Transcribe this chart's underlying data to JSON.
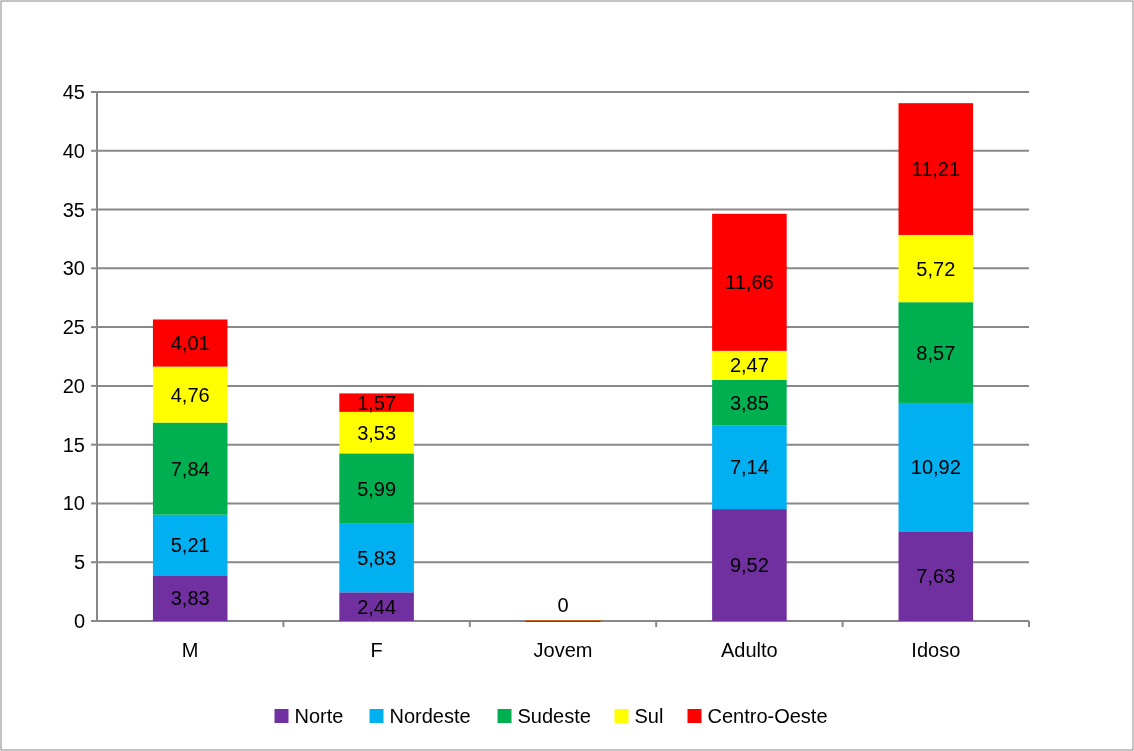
{
  "chart_data": {
    "type": "bar",
    "stacked": true,
    "categories": [
      "M",
      "F",
      "Jovem",
      "Adulto",
      "Idoso"
    ],
    "series": [
      {
        "name": "Norte",
        "color": "#7030a0",
        "values": [
          3.83,
          2.44,
          0,
          9.52,
          7.63
        ],
        "value_labels": [
          "3,83",
          "2,44",
          null,
          "9,52",
          "7,63"
        ]
      },
      {
        "name": "Nordeste",
        "color": "#00b0f0",
        "values": [
          5.21,
          5.83,
          0,
          7.14,
          10.92
        ],
        "value_labels": [
          "5,21",
          "5,83",
          null,
          "7,14",
          "10,92"
        ]
      },
      {
        "name": "Sudeste",
        "color": "#00b050",
        "values": [
          7.84,
          5.99,
          0,
          3.85,
          8.57
        ],
        "value_labels": [
          "7,84",
          "5,99",
          null,
          "3,85",
          "8,57"
        ]
      },
      {
        "name": "Sul",
        "color": "#ffff00",
        "values": [
          4.76,
          3.53,
          0,
          2.47,
          5.72
        ],
        "value_labels": [
          "4,76",
          "3,53",
          null,
          "2,47",
          "5,72"
        ]
      },
      {
        "name": "Centro-Oeste",
        "color": "#ff0000",
        "values": [
          4.01,
          1.57,
          0,
          11.66,
          11.21
        ],
        "value_labels": [
          "4,01",
          "1,57",
          "0",
          "11,66",
          "11,21"
        ]
      }
    ],
    "ylim": [
      0,
      45
    ],
    "yticks": [
      0,
      5,
      10,
      15,
      20,
      25,
      30,
      35,
      40,
      45
    ],
    "grid": "y",
    "legend": "bottom"
  }
}
